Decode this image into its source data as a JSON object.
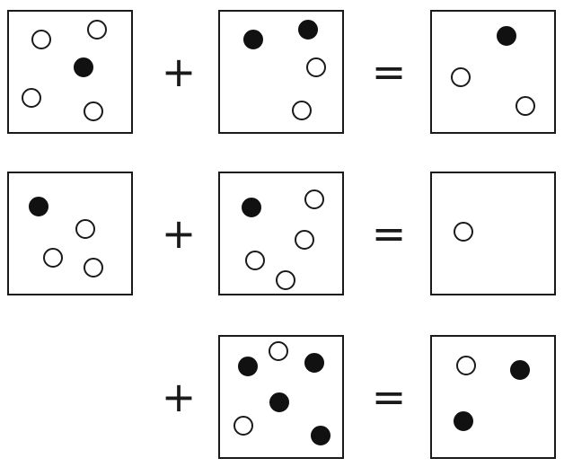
{
  "operators": {
    "plus": "+",
    "equals": "="
  },
  "colors": {
    "ink": "#111111",
    "stroke": "#1a1a1a",
    "background": "#ffffff"
  },
  "equations": [
    {
      "addend_1": {
        "filled": 1,
        "open": 4
      },
      "addend_2": {
        "filled": 2,
        "open": 2
      },
      "result": {
        "filled": 1,
        "open": 2
      }
    },
    {
      "addend_1": {
        "filled": 1,
        "open": 3
      },
      "addend_2": {
        "filled": 1,
        "open": 4
      },
      "result": {
        "filled": 0,
        "open": 1
      }
    },
    {
      "addend_1": null,
      "addend_2": {
        "filled": 4,
        "open": 2
      },
      "result": {
        "filled": 2,
        "open": 1
      }
    }
  ]
}
